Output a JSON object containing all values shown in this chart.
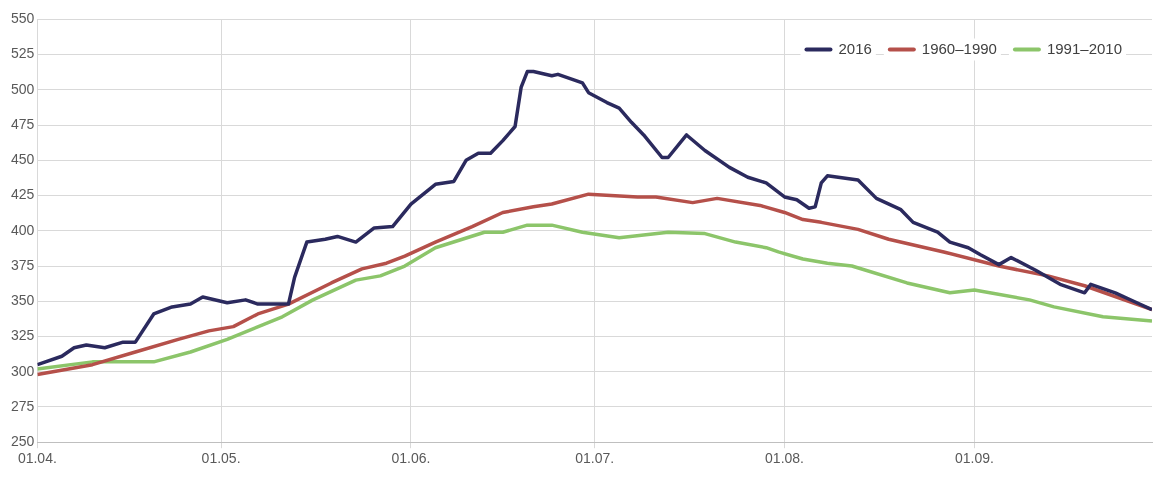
{
  "chart_data": {
    "type": "line",
    "xlim": [
      "--04-01",
      "--09-30"
    ],
    "xticks": [
      {
        "value": "--04-01",
        "label": "01.04."
      },
      {
        "value": "--05-01",
        "label": "01.05."
      },
      {
        "value": "--06-01",
        "label": "01.06."
      },
      {
        "value": "--07-01",
        "label": "01.07."
      },
      {
        "value": "--08-01",
        "label": "01.08."
      },
      {
        "value": "--09-01",
        "label": "01.09."
      }
    ],
    "ylim": [
      250,
      550
    ],
    "yticks": [
      250,
      275,
      300,
      325,
      350,
      375,
      400,
      425,
      450,
      475,
      500,
      525,
      550
    ],
    "grid": true,
    "legend": "top right",
    "series": [
      {
        "name": "2016",
        "color": "#2b2a5e",
        "x": [
          "--04-01",
          "--04-05",
          "--04-07",
          "--04-09",
          "--04-12",
          "--04-15",
          "--04-17",
          "--04-20",
          "--04-23",
          "--04-26",
          "--04-28",
          "--05-02",
          "--05-05",
          "--05-07",
          "--05-12",
          "--05-13",
          "--05-15",
          "--05-18",
          "--05-20",
          "--05-23",
          "--05-26",
          "--05-29",
          "--06-01",
          "--06-05",
          "--06-08",
          "--06-10",
          "--06-12",
          "--06-14",
          "--06-16",
          "--06-18",
          "--06-19",
          "--06-20",
          "--06-21",
          "--06-24",
          "--06-25",
          "--06-29",
          "--06-30",
          "--07-03",
          "--07-05",
          "--07-07",
          "--07-09",
          "--07-12",
          "--07-13",
          "--07-16",
          "--07-19",
          "--07-23",
          "--07-26",
          "--07-29",
          "--08-01",
          "--08-03",
          "--08-05",
          "--08-06",
          "--08-07",
          "--08-08",
          "--08-13",
          "--08-16",
          "--08-20",
          "--08-22",
          "--08-26",
          "--08-28",
          "--08-31",
          "--09-02",
          "--09-05",
          "--09-07",
          "--09-11",
          "--09-15",
          "--09-19",
          "--09-20",
          "--09-24",
          "--09-27",
          "--09-30"
        ],
        "values": [
          305,
          311,
          317,
          319,
          317,
          321,
          321,
          341,
          346,
          348,
          353,
          349,
          351,
          348,
          348,
          367,
          392,
          394,
          396,
          392,
          402,
          403,
          419,
          433,
          435,
          450,
          455,
          455,
          464,
          474,
          502,
          513,
          513,
          510,
          511,
          505,
          498,
          491,
          487,
          477,
          468,
          452,
          452,
          468,
          457,
          445,
          438,
          434,
          424,
          422,
          416,
          417,
          434,
          439,
          436,
          423,
          415,
          406,
          399,
          392,
          388,
          383,
          376,
          381,
          372,
          362,
          356,
          362,
          356,
          350,
          344
        ]
      },
      {
        "name": "1960–1990",
        "color": "#b5504a",
        "x": [
          "--04-01",
          "--04-10",
          "--04-17",
          "--04-24",
          "--04-29",
          "--05-03",
          "--05-07",
          "--05-12",
          "--05-19",
          "--05-24",
          "--05-28",
          "--05-31",
          "--06-05",
          "--06-11",
          "--06-16",
          "--06-21",
          "--06-24",
          "--06-30",
          "--07-08",
          "--07-11",
          "--07-17",
          "--07-21",
          "--07-28",
          "--08-01",
          "--08-04",
          "--08-07",
          "--08-13",
          "--08-18",
          "--08-27",
          "--09-05",
          "--09-13",
          "--09-19",
          "--09-30"
        ],
        "values": [
          298,
          305,
          314,
          323,
          329,
          332,
          341,
          348,
          363,
          373,
          377,
          382,
          392,
          403,
          413,
          417,
          419,
          426,
          424,
          424,
          420,
          423,
          418,
          413,
          408,
          406,
          401,
          394,
          385,
          375,
          368,
          361,
          344
        ]
      },
      {
        "name": "1991–2010",
        "color": "#8cc56a",
        "x": [
          "--04-01",
          "--04-10",
          "--04-20",
          "--04-26",
          "--05-02",
          "--05-11",
          "--05-16",
          "--05-23",
          "--05-27",
          "--05-31",
          "--06-05",
          "--06-13",
          "--06-16",
          "--06-20",
          "--06-24",
          "--06-29",
          "--07-05",
          "--07-13",
          "--07-19",
          "--07-24",
          "--07-29",
          "--07-31",
          "--08-04",
          "--08-08",
          "--08-12",
          "--08-21",
          "--08-28",
          "--09-01",
          "--09-10",
          "--09-14",
          "--09-22",
          "--09-30"
        ],
        "values": [
          302,
          307,
          307,
          314,
          323,
          339,
          351,
          365,
          368,
          375,
          388,
          399,
          399,
          404,
          404,
          399,
          395,
          399,
          398,
          392,
          388,
          385,
          380,
          377,
          375,
          363,
          356,
          358,
          351,
          346,
          339,
          336
        ]
      }
    ]
  }
}
